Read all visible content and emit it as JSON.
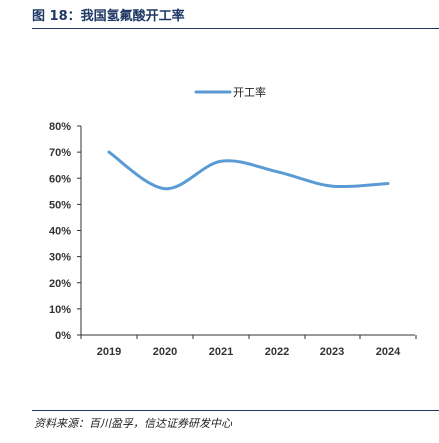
{
  "figure": {
    "title": "图 18：我国氢氟酸开工率",
    "source": "资料来源：百川盈孚，信达证券研发中心"
  },
  "colors": {
    "line": "#5b9bd5",
    "title": "#1f3864",
    "axis": "#333333"
  },
  "chart_data": {
    "type": "line",
    "categories": [
      "2019",
      "2020",
      "2021",
      "2022",
      "2023",
      "2024"
    ],
    "series": [
      {
        "name": "开工率",
        "values": [
          0.7,
          0.56,
          0.665,
          0.625,
          0.57,
          0.58
        ]
      }
    ],
    "ylim": [
      0,
      0.8
    ],
    "yticks": [
      "0%",
      "10%",
      "20%",
      "30%",
      "40%",
      "50%",
      "60%",
      "70%",
      "80%"
    ],
    "legend_position": "top-center",
    "grid": false,
    "smooth": true
  }
}
